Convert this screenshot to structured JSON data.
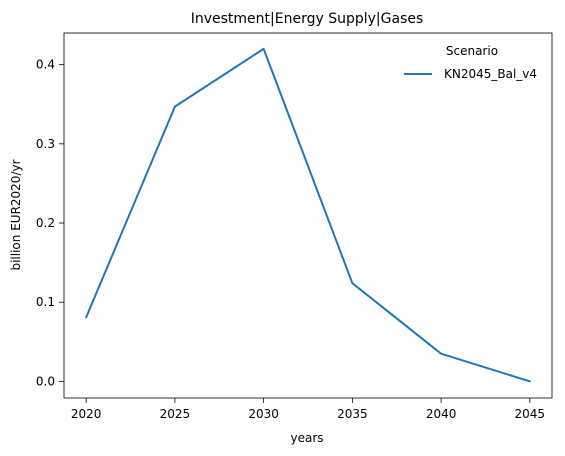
{
  "chart_data": {
    "type": "line",
    "title": "Investment|Energy Supply|Gases",
    "xlabel": "years",
    "ylabel": "billion EUR2020/yr",
    "x": [
      2020,
      2025,
      2030,
      2035,
      2040,
      2045
    ],
    "x_ticks": [
      "2020",
      "2025",
      "2030",
      "2035",
      "2040",
      "2045"
    ],
    "y_ticks": [
      "0.0",
      "0.1",
      "0.2",
      "0.3",
      "0.4"
    ],
    "xlim": [
      2018.75,
      2046.25
    ],
    "ylim": [
      -0.021,
      0.44
    ],
    "grid": false,
    "legend": {
      "title": "Scenario",
      "placement": "top-right"
    },
    "series": [
      {
        "name": "KN2045_Bal_v4",
        "color": "#1f77b4",
        "values": [
          0.081,
          0.347,
          0.42,
          0.124,
          0.035,
          0.0
        ]
      }
    ]
  }
}
